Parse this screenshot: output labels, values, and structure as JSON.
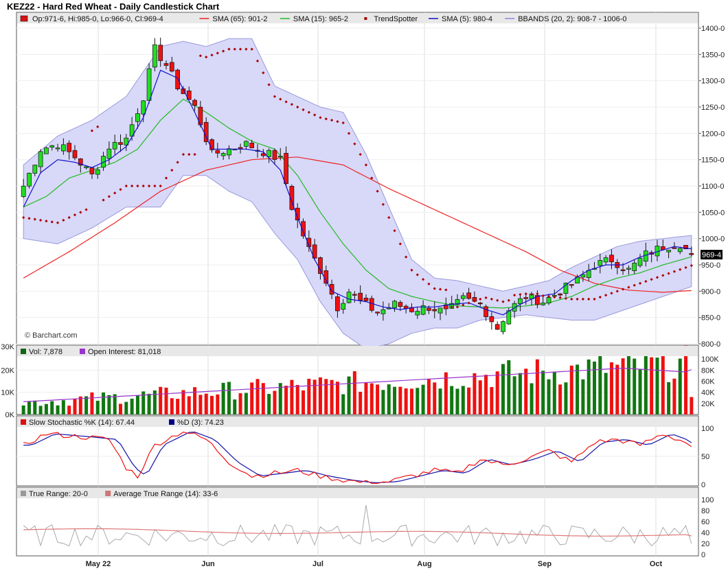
{
  "title": "KEZ22 - Hard Red Wheat - Daily Candlestick Chart",
  "watermark": "© Barchart.com",
  "price_legend": [
    {
      "key": "ohlc",
      "text": "Op:971-6, Hi:985-0, Lo:966-0, Cl:969-4",
      "color": "#dd1111",
      "swatch": "box"
    },
    {
      "key": "sma65",
      "text": "SMA (65): 901-2",
      "color": "#ee2222",
      "swatch": "line"
    },
    {
      "key": "sma15",
      "text": "SMA (15): 965-2",
      "color": "#22bb22",
      "swatch": "line"
    },
    {
      "key": "trend",
      "text": "TrendSpotter",
      "color": "#aa0000",
      "swatch": "dot"
    },
    {
      "key": "sma5",
      "text": "SMA (5): 980-4",
      "color": "#1111cc",
      "swatch": "line"
    },
    {
      "key": "bb",
      "text": "BBANDS (20, 2): 908-7 - 1006-0",
      "color": "#8888dd",
      "swatch": "line"
    }
  ],
  "price_axis_ticks": [
    "1400-0",
    "1350-0",
    "1300-0",
    "1250-0",
    "1200-0",
    "1150-0",
    "1100-0",
    "1050-0",
    "1000-0",
    "950-0",
    "900-0",
    "850-0",
    "800-0"
  ],
  "last_price_label": "969-4",
  "volume_legend": [
    {
      "text": "Vol: 7,878",
      "color": "#116611"
    },
    {
      "text": "Open Interest: 81,018",
      "color": "#9933cc"
    }
  ],
  "volume_left_ticks": [
    "30K",
    "20K",
    "10K",
    "0K"
  ],
  "volume_right_ticks": [
    "100K",
    "80K",
    "60K",
    "40K",
    "20K"
  ],
  "stoch_legend": [
    {
      "text": "Slow Stochastic %K (14): 67.44",
      "color": "#dd1111"
    },
    {
      "text": "%D (3): 74.23",
      "color": "#000088"
    }
  ],
  "stoch_ticks": [
    "100",
    "50",
    "0"
  ],
  "tr_legend": [
    {
      "text": "True Range: 20-0",
      "color": "#999999"
    },
    {
      "text": "Average True Range (14): 33-6",
      "color": "#cc7777"
    }
  ],
  "tr_ticks": [
    "100",
    "80",
    "60",
    "40",
    "20",
    "0"
  ],
  "x_labels": [
    "May 22",
    "Jun",
    "Jul",
    "Aug",
    "Sep",
    "Oct"
  ],
  "colors": {
    "up_candle": "#22dd22",
    "down_candle": "#ee1111",
    "vol_up": "#117711",
    "vol_down": "#ee1111",
    "bb_fill": "#d8d8f8",
    "bb_edge": "#9999dd",
    "sma5": "#1111cc",
    "sma15": "#22bb22",
    "sma65": "#ee2222",
    "trend": "#aa0000",
    "oi": "#9933cc",
    "stoch_k": "#ee1111",
    "stoch_d": "#1111aa",
    "tr": "#aaaaaa",
    "atr": "#dd7777"
  },
  "chart_data": {
    "type": "candlestick",
    "title": "KEZ22 - Hard Red Wheat - Daily Candlestick Chart",
    "ylim": [
      800,
      1430
    ],
    "ohlc_last": {
      "open": 971.75,
      "high": 985.0,
      "low": 966.0,
      "close": 969.5
    },
    "close_points": [
      [
        0,
        1100
      ],
      [
        3,
        1170
      ],
      [
        6,
        1180
      ],
      [
        9,
        1155
      ],
      [
        12,
        1120
      ],
      [
        15,
        1175
      ],
      [
        18,
        1190
      ],
      [
        21,
        1270
      ],
      [
        23,
        1360
      ],
      [
        25,
        1330
      ],
      [
        27,
        1290
      ],
      [
        30,
        1250
      ],
      [
        33,
        1160
      ],
      [
        36,
        1170
      ],
      [
        39,
        1180
      ],
      [
        42,
        1165
      ],
      [
        45,
        1150
      ],
      [
        47,
        1060
      ],
      [
        50,
        980
      ],
      [
        53,
        920
      ],
      [
        55,
        870
      ],
      [
        57,
        900
      ],
      [
        59,
        880
      ],
      [
        62,
        860
      ],
      [
        65,
        875
      ],
      [
        68,
        865
      ],
      [
        71,
        870
      ],
      [
        74,
        860
      ],
      [
        77,
        885
      ],
      [
        80,
        875
      ],
      [
        83,
        830
      ],
      [
        85,
        865
      ],
      [
        88,
        890
      ],
      [
        91,
        880
      ],
      [
        94,
        900
      ],
      [
        97,
        920
      ],
      [
        100,
        950
      ],
      [
        103,
        960
      ],
      [
        106,
        940
      ],
      [
        109,
        970
      ],
      [
        112,
        985
      ],
      [
        115,
        990
      ],
      [
        117,
        969.5
      ]
    ],
    "series": [
      {
        "name": "SMA (5)",
        "last": 980.5,
        "points": [
          [
            0,
            1060
          ],
          [
            3,
            1125
          ],
          [
            6,
            1150
          ],
          [
            9,
            1145
          ],
          [
            12,
            1135
          ],
          [
            15,
            1150
          ],
          [
            18,
            1175
          ],
          [
            21,
            1230
          ],
          [
            24,
            1320
          ],
          [
            27,
            1305
          ],
          [
            30,
            1240
          ],
          [
            33,
            1170
          ],
          [
            36,
            1170
          ],
          [
            39,
            1170
          ],
          [
            42,
            1165
          ],
          [
            45,
            1130
          ],
          [
            48,
            1040
          ],
          [
            51,
            960
          ],
          [
            54,
            900
          ],
          [
            57,
            885
          ],
          [
            60,
            880
          ],
          [
            63,
            870
          ],
          [
            66,
            865
          ],
          [
            69,
            870
          ],
          [
            72,
            870
          ],
          [
            75,
            875
          ],
          [
            78,
            878
          ],
          [
            81,
            865
          ],
          [
            84,
            855
          ],
          [
            87,
            875
          ],
          [
            90,
            890
          ],
          [
            93,
            895
          ],
          [
            96,
            920
          ],
          [
            99,
            940
          ],
          [
            102,
            950
          ],
          [
            105,
            950
          ],
          [
            108,
            965
          ],
          [
            111,
            975
          ],
          [
            114,
            985
          ],
          [
            117,
            980.5
          ]
        ]
      },
      {
        "name": "SMA (15)",
        "last": 965.25,
        "points": [
          [
            0,
            1060
          ],
          [
            4,
            1080
          ],
          [
            8,
            1115
          ],
          [
            12,
            1130
          ],
          [
            16,
            1145
          ],
          [
            20,
            1170
          ],
          [
            24,
            1225
          ],
          [
            28,
            1265
          ],
          [
            32,
            1240
          ],
          [
            36,
            1210
          ],
          [
            40,
            1185
          ],
          [
            44,
            1170
          ],
          [
            48,
            1120
          ],
          [
            52,
            1050
          ],
          [
            56,
            990
          ],
          [
            60,
            940
          ],
          [
            64,
            905
          ],
          [
            68,
            890
          ],
          [
            72,
            880
          ],
          [
            76,
            872
          ],
          [
            80,
            870
          ],
          [
            84,
            868
          ],
          [
            88,
            872
          ],
          [
            92,
            878
          ],
          [
            96,
            890
          ],
          [
            100,
            910
          ],
          [
            104,
            925
          ],
          [
            108,
            935
          ],
          [
            112,
            950
          ],
          [
            117,
            965.25
          ]
        ]
      },
      {
        "name": "SMA (65)",
        "last": 901.25,
        "points": [
          [
            0,
            925
          ],
          [
            8,
            975
          ],
          [
            16,
            1030
          ],
          [
            24,
            1090
          ],
          [
            32,
            1130
          ],
          [
            40,
            1150
          ],
          [
            48,
            1155
          ],
          [
            56,
            1140
          ],
          [
            64,
            1095
          ],
          [
            72,
            1055
          ],
          [
            80,
            1015
          ],
          [
            88,
            975
          ],
          [
            94,
            940
          ],
          [
            100,
            915
          ],
          [
            106,
            902
          ],
          [
            112,
            898
          ],
          [
            117,
            901.25
          ]
        ]
      },
      {
        "name": "BBANDS (20, 2) upper",
        "last": 1006.0,
        "points": [
          [
            0,
            1140
          ],
          [
            6,
            1195
          ],
          [
            12,
            1225
          ],
          [
            18,
            1270
          ],
          [
            24,
            1365
          ],
          [
            28,
            1375
          ],
          [
            32,
            1365
          ],
          [
            36,
            1380
          ],
          [
            40,
            1380
          ],
          [
            44,
            1290
          ],
          [
            48,
            1270
          ],
          [
            52,
            1250
          ],
          [
            56,
            1240
          ],
          [
            60,
            1160
          ],
          [
            64,
            1060
          ],
          [
            68,
            960
          ],
          [
            72,
            925
          ],
          [
            76,
            920
          ],
          [
            80,
            910
          ],
          [
            84,
            900
          ],
          [
            88,
            910
          ],
          [
            92,
            920
          ],
          [
            96,
            945
          ],
          [
            100,
            965
          ],
          [
            104,
            985
          ],
          [
            108,
            995
          ],
          [
            112,
            1000
          ],
          [
            117,
            1006
          ]
        ]
      },
      {
        "name": "BBANDS (20, 2) lower",
        "last": 908.75,
        "points": [
          [
            0,
            1000
          ],
          [
            6,
            990
          ],
          [
            12,
            1020
          ],
          [
            18,
            1060
          ],
          [
            24,
            1060
          ],
          [
            28,
            1120
          ],
          [
            32,
            1120
          ],
          [
            36,
            1090
          ],
          [
            40,
            1070
          ],
          [
            44,
            1010
          ],
          [
            48,
            960
          ],
          [
            52,
            880
          ],
          [
            56,
            820
          ],
          [
            60,
            790
          ],
          [
            64,
            800
          ],
          [
            68,
            820
          ],
          [
            72,
            830
          ],
          [
            76,
            830
          ],
          [
            80,
            845
          ],
          [
            84,
            850
          ],
          [
            88,
            855
          ],
          [
            92,
            850
          ],
          [
            96,
            845
          ],
          [
            100,
            845
          ],
          [
            104,
            860
          ],
          [
            108,
            875
          ],
          [
            112,
            890
          ],
          [
            117,
            908.75
          ]
        ]
      }
    ],
    "volume_last": 7878,
    "open_interest_last": 81018,
    "stochastic": {
      "k_last": 67.44,
      "d_last": 74.23,
      "ylim": [
        0,
        100
      ]
    },
    "true_range": {
      "tr_last": 20.0,
      "atr_last": 33.75,
      "ylim": [
        0,
        100
      ]
    }
  }
}
